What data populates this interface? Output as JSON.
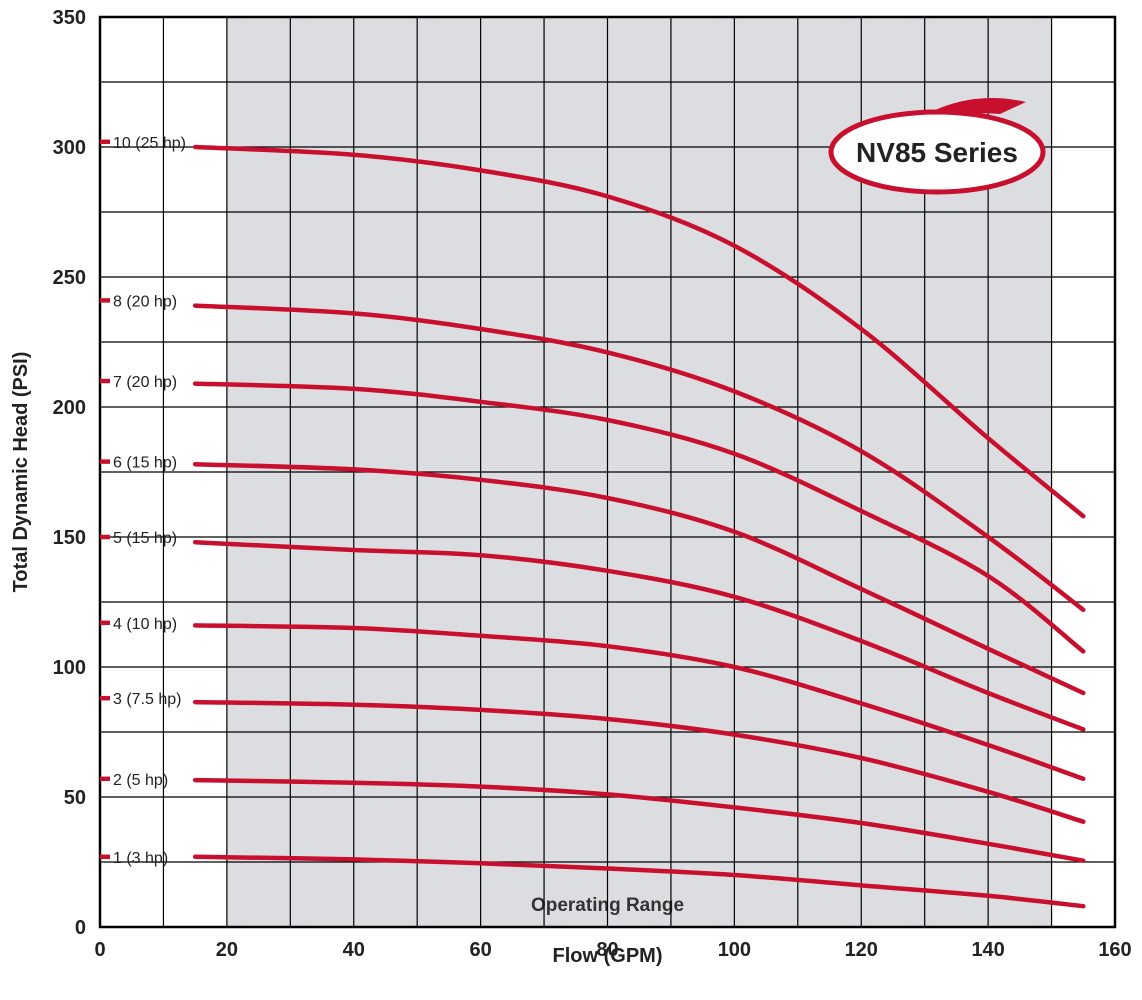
{
  "chart_data": {
    "type": "line",
    "title": "",
    "badge": "NV85 Series",
    "xlabel": "Flow (GPM)",
    "ylabel": "Total Dynamic Head (PSI)",
    "xlim": [
      0,
      160
    ],
    "ylim": [
      0,
      350
    ],
    "x_ticks": [
      0,
      20,
      40,
      60,
      80,
      100,
      120,
      140,
      160
    ],
    "y_ticks": [
      0,
      50,
      100,
      150,
      200,
      250,
      300,
      350
    ],
    "x_grid_step": 10,
    "y_grid_step": 25,
    "grid": true,
    "operating_range": {
      "label": "Operating Range",
      "x": [
        20,
        150
      ]
    },
    "colors": {
      "curve": "#c8102e",
      "range_fill": "#dcdde0",
      "grid": "#000000"
    },
    "series": [
      {
        "name": "1 (3 hp)",
        "label_y": 27,
        "x": [
          15,
          40,
          60,
          80,
          100,
          120,
          140,
          155
        ],
        "y": [
          27,
          26,
          24.5,
          22.5,
          20,
          16,
          12,
          8
        ]
      },
      {
        "name": "2 (5 hp)",
        "label_y": 57,
        "x": [
          15,
          40,
          60,
          80,
          100,
          120,
          140,
          155
        ],
        "y": [
          56.5,
          55.5,
          54,
          51,
          46,
          40,
          32,
          25.5
        ]
      },
      {
        "name": "3 (7.5 hp)",
        "label_y": 88,
        "x": [
          15,
          40,
          60,
          80,
          100,
          120,
          140,
          155
        ],
        "y": [
          86.5,
          85.5,
          83.5,
          80,
          74,
          65,
          52,
          40.5
        ]
      },
      {
        "name": "4 (10 hp)",
        "label_y": 117,
        "x": [
          15,
          40,
          60,
          80,
          100,
          120,
          140,
          155
        ],
        "y": [
          116,
          115,
          112,
          108,
          100,
          86,
          70,
          57
        ]
      },
      {
        "name": "5 (15 hp)",
        "label_y": 150,
        "x": [
          15,
          40,
          60,
          80,
          100,
          120,
          140,
          155
        ],
        "y": [
          148,
          145,
          143,
          137,
          127,
          110,
          90,
          76
        ]
      },
      {
        "name": "6 (15 hp)",
        "label_y": 179,
        "x": [
          15,
          40,
          60,
          80,
          100,
          120,
          140,
          155
        ],
        "y": [
          178,
          176,
          172,
          165,
          152,
          130,
          107,
          90
        ]
      },
      {
        "name": "7 (20 hp)",
        "label_y": 210,
        "x": [
          15,
          40,
          60,
          80,
          100,
          120,
          140,
          155
        ],
        "y": [
          209,
          207,
          202,
          195,
          182,
          160,
          135,
          106
        ]
      },
      {
        "name": "8 (20 hp)",
        "label_y": 241,
        "x": [
          15,
          40,
          60,
          80,
          100,
          120,
          140,
          155
        ],
        "y": [
          239,
          236,
          230,
          221,
          206,
          183,
          150,
          122
        ]
      },
      {
        "name": "10 (25 hp)",
        "label_y": 302,
        "x": [
          15,
          40,
          60,
          80,
          100,
          120,
          140,
          155
        ],
        "y": [
          300,
          297,
          291,
          281,
          262,
          230,
          188,
          158
        ]
      }
    ]
  }
}
